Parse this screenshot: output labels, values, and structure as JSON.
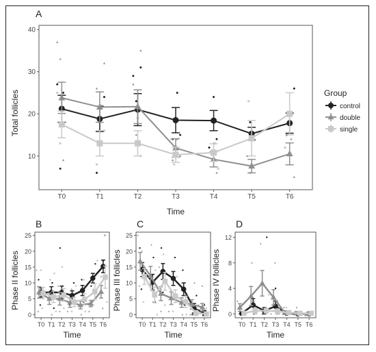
{
  "colors": {
    "control": "#222222",
    "double": "#8f8f8f",
    "single": "#c9c9c9",
    "panel_border": "#555555",
    "grid": "none"
  },
  "legend": {
    "title": "Group",
    "items": [
      {
        "key": "control",
        "label": "control",
        "marker": "circle"
      },
      {
        "key": "double",
        "label": "double",
        "marker": "triangle"
      },
      {
        "key": "single",
        "label": "single",
        "marker": "square"
      }
    ]
  },
  "chart_data": [
    {
      "id": "A",
      "type": "line",
      "panel_label": "A",
      "xlabel": "Time",
      "ylabel": "Total follicles",
      "categories": [
        "T0",
        "T1",
        "T2",
        "T3",
        "T4",
        "T5",
        "T6"
      ],
      "yticks": [
        10,
        20,
        30,
        40
      ],
      "ylim": [
        2,
        41
      ],
      "series": [
        {
          "name": "control",
          "values": [
            21.2,
            18.8,
            21,
            18.5,
            18.4,
            15.3,
            17.8
          ],
          "errors": [
            3.2,
            3.0,
            3.8,
            3.0,
            2.4,
            1.5,
            2.4
          ],
          "points": [
            [
              0,
              27
            ],
            [
              0,
              7
            ],
            [
              0,
              25
            ],
            [
              1,
              24
            ],
            [
              1,
              6
            ],
            [
              1,
              19
            ],
            [
              2,
              31
            ],
            [
              2,
              29
            ],
            [
              2,
              23
            ],
            [
              3,
              25
            ],
            [
              3,
              15
            ],
            [
              3,
              14
            ],
            [
              4,
              24
            ],
            [
              4,
              14
            ],
            [
              4,
              12
            ],
            [
              5,
              18
            ],
            [
              5,
              15
            ],
            [
              6,
              26
            ],
            [
              6,
              15
            ]
          ]
        },
        {
          "name": "double",
          "values": [
            23.8,
            21.6,
            21.7,
            11.9,
            9.2,
            7.6,
            10.5
          ],
          "errors": [
            3.7,
            3.6,
            4.0,
            2.2,
            1.8,
            1.6,
            2.6
          ],
          "points": [
            [
              0,
              37
            ],
            [
              0,
              33
            ],
            [
              0,
              9
            ],
            [
              1,
              32
            ],
            [
              1,
              26
            ],
            [
              1,
              18
            ],
            [
              2,
              35
            ],
            [
              2,
              27
            ],
            [
              2,
              15
            ],
            [
              3,
              14
            ],
            [
              3,
              10
            ],
            [
              3,
              9
            ],
            [
              4,
              13
            ],
            [
              4,
              6
            ],
            [
              5,
              10
            ],
            [
              5,
              6
            ],
            [
              6,
              14
            ],
            [
              6,
              5
            ]
          ]
        },
        {
          "name": "single",
          "values": [
            17.5,
            13,
            13,
            10.3,
            10.8,
            14.2,
            20
          ],
          "errors": [
            3.2,
            3.0,
            3.0,
            1.8,
            2.1,
            4.2,
            5.0
          ],
          "points": [
            [
              0,
              25
            ],
            [
              0,
              13
            ],
            [
              1,
              22
            ],
            [
              1,
              16
            ],
            [
              1,
              8
            ],
            [
              2,
              19
            ],
            [
              2,
              10
            ],
            [
              3,
              14
            ],
            [
              3,
              8
            ],
            [
              4,
              13
            ],
            [
              4,
              7
            ],
            [
              5,
              23
            ],
            [
              5,
              8
            ],
            [
              6,
              20
            ],
            [
              6,
              12
            ]
          ]
        }
      ]
    },
    {
      "id": "B",
      "type": "line",
      "panel_label": "B",
      "xlabel": "Time",
      "ylabel": "Phase II follicles",
      "categories": [
        "T0",
        "T1",
        "T2",
        "T3",
        "T4",
        "T5",
        "T6"
      ],
      "yticks": [
        0,
        5,
        10,
        15,
        20,
        25
      ],
      "ylim": [
        -1,
        26
      ],
      "series": [
        {
          "name": "control",
          "values": [
            7,
            7,
            7,
            6,
            7.6,
            11.5,
            15.2
          ],
          "errors": [
            1.5,
            1.8,
            2.0,
            1.5,
            1.6,
            1.5,
            2.0
          ],
          "points": [
            [
              0,
              11
            ],
            [
              0,
              3
            ],
            [
              1,
              10
            ],
            [
              1,
              2
            ],
            [
              2,
              21
            ],
            [
              2,
              5
            ],
            [
              3,
              10
            ],
            [
              3,
              3
            ],
            [
              4,
              11
            ],
            [
              4,
              4
            ],
            [
              5,
              16
            ],
            [
              5,
              9
            ],
            [
              6,
              17
            ],
            [
              6,
              25
            ]
          ]
        },
        {
          "name": "double",
          "values": [
            7,
            5,
            5,
            3.8,
            3,
            3.5,
            7.2
          ],
          "errors": [
            1.8,
            1.8,
            2.0,
            1.5,
            1.2,
            1.0,
            2.0
          ],
          "points": [
            [
              0,
              14
            ],
            [
              0,
              1
            ],
            [
              1,
              11
            ],
            [
              1,
              0
            ],
            [
              2,
              9
            ],
            [
              2,
              1
            ],
            [
              3,
              8
            ],
            [
              3,
              1
            ],
            [
              4,
              7
            ],
            [
              4,
              0
            ],
            [
              5,
              8
            ],
            [
              5,
              1
            ],
            [
              6,
              12
            ],
            [
              6,
              2
            ]
          ]
        },
        {
          "name": "single",
          "values": [
            6.8,
            5.6,
            6.2,
            4,
            4.8,
            7.2,
            11.8
          ],
          "errors": [
            1.8,
            1.8,
            2.0,
            1.5,
            1.8,
            2.5,
            3.5
          ],
          "points": [
            [
              0,
              14
            ],
            [
              0,
              2
            ],
            [
              1,
              13
            ],
            [
              1,
              1
            ],
            [
              2,
              15
            ],
            [
              2,
              2
            ],
            [
              3,
              9
            ],
            [
              3,
              1
            ],
            [
              4,
              11
            ],
            [
              4,
              1
            ],
            [
              5,
              17
            ],
            [
              5,
              3
            ],
            [
              6,
              25
            ],
            [
              6,
              4
            ]
          ]
        }
      ]
    },
    {
      "id": "C",
      "type": "line",
      "panel_label": "C",
      "xlabel": "Time",
      "ylabel": "Phase III follicles",
      "categories": [
        "T0",
        "T1",
        "T2",
        "T3",
        "T4",
        "T5",
        "T6"
      ],
      "yticks": [
        0,
        5,
        10,
        15,
        20,
        25
      ],
      "ylim": [
        -1,
        26
      ],
      "series": [
        {
          "name": "control",
          "values": [
            14.2,
            10.2,
            13.6,
            11.4,
            8,
            2,
            0.5
          ],
          "errors": [
            2.2,
            2.5,
            2.5,
            2.2,
            2.0,
            1.5,
            0.8
          ],
          "points": [
            [
              0,
              21
            ],
            [
              0,
              8
            ],
            [
              1,
              18
            ],
            [
              1,
              4
            ],
            [
              2,
              21
            ],
            [
              2,
              7
            ],
            [
              3,
              18
            ],
            [
              3,
              5
            ],
            [
              4,
              14
            ],
            [
              4,
              3
            ],
            [
              5,
              6
            ],
            [
              5,
              0
            ],
            [
              6,
              3
            ],
            [
              6,
              0
            ]
          ]
        },
        {
          "name": "double",
          "values": [
            16.8,
            12.2,
            6.6,
            5.2,
            3.8,
            3.2,
            2.3
          ],
          "errors": [
            2.8,
            3.0,
            2.2,
            2.0,
            1.5,
            1.5,
            1.2
          ],
          "points": [
            [
              0,
              25
            ],
            [
              0,
              9
            ],
            [
              1,
              22
            ],
            [
              1,
              4
            ],
            [
              2,
              15
            ],
            [
              2,
              1
            ],
            [
              3,
              13
            ],
            [
              3,
              1
            ],
            [
              4,
              9
            ],
            [
              4,
              0
            ],
            [
              5,
              10
            ],
            [
              5,
              0
            ],
            [
              6,
              9
            ],
            [
              6,
              0
            ]
          ]
        },
        {
          "name": "single",
          "values": [
            12,
            6.2,
            10.5,
            5.8,
            4,
            0.5,
            0.2
          ],
          "errors": [
            2.5,
            2.5,
            2.8,
            2.0,
            1.8,
            0.8,
            0.5
          ],
          "points": [
            [
              0,
              20
            ],
            [
              0,
              4
            ],
            [
              1,
              14
            ],
            [
              1,
              0
            ],
            [
              2,
              19
            ],
            [
              2,
              3
            ],
            [
              3,
              12
            ],
            [
              3,
              1
            ],
            [
              4,
              10
            ],
            [
              4,
              0
            ],
            [
              5,
              3
            ],
            [
              5,
              0
            ],
            [
              6,
              2
            ],
            [
              6,
              0
            ]
          ]
        }
      ]
    },
    {
      "id": "D",
      "type": "line",
      "panel_label": "D",
      "xlabel": "Time",
      "ylabel": "Phase IV follicles",
      "categories": [
        "T0",
        "T1",
        "T2",
        "T3",
        "T4",
        "T5",
        "T6"
      ],
      "yticks": [
        0,
        4,
        8,
        12
      ],
      "ylim": [
        -0.6,
        12.8
      ],
      "series": [
        {
          "name": "control",
          "values": [
            0.1,
            1.4,
            0.5,
            1.2,
            0.1,
            0,
            0
          ],
          "errors": [
            0.3,
            1.0,
            0.5,
            0.8,
            0.2,
            0.1,
            0.1
          ],
          "points": [
            [
              0,
              0
            ],
            [
              1,
              3
            ],
            [
              1,
              0
            ],
            [
              2,
              12
            ],
            [
              2,
              0
            ],
            [
              3,
              4
            ],
            [
              3,
              0
            ],
            [
              4,
              0
            ],
            [
              5,
              0
            ],
            [
              6,
              0
            ]
          ]
        },
        {
          "name": "double",
          "values": [
            1,
            2.8,
            4.8,
            2.6,
            0.2,
            0.1,
            0
          ],
          "errors": [
            0.6,
            1.5,
            2.0,
            1.2,
            0.3,
            0.2,
            0.1
          ],
          "points": [
            [
              0,
              2
            ],
            [
              0,
              0
            ],
            [
              1,
              8
            ],
            [
              1,
              0
            ],
            [
              2,
              11
            ],
            [
              2,
              0
            ],
            [
              3,
              8
            ],
            [
              3,
              0
            ],
            [
              4,
              1
            ],
            [
              5,
              1
            ],
            [
              6,
              0
            ]
          ]
        },
        {
          "name": "single",
          "values": [
            0.1,
            0.5,
            0.5,
            0.4,
            0.2,
            0.1,
            0.1
          ],
          "errors": [
            0.2,
            0.4,
            0.4,
            0.4,
            0.3,
            0.2,
            0.2
          ],
          "points": [
            [
              0,
              0
            ],
            [
              1,
              2
            ],
            [
              1,
              0
            ],
            [
              2,
              3
            ],
            [
              2,
              0
            ],
            [
              3,
              2
            ],
            [
              3,
              0
            ],
            [
              4,
              1
            ],
            [
              5,
              0
            ],
            [
              6,
              0
            ]
          ]
        }
      ]
    }
  ]
}
